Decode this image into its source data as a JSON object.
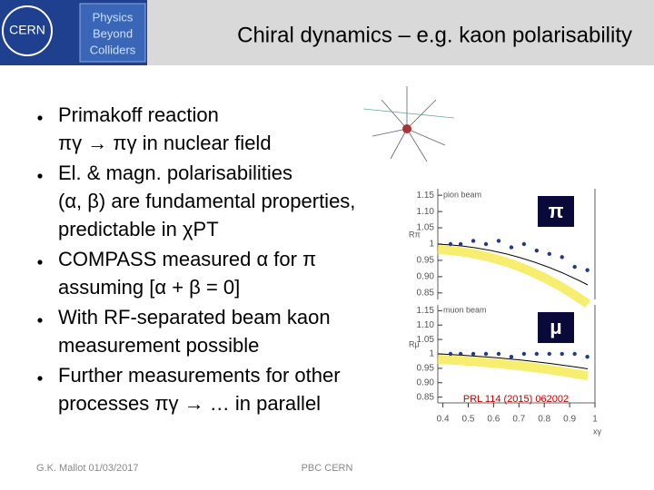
{
  "header": {
    "title": "Chiral dynamics – e.g. kaon polarisability",
    "logo_cern": "CERN",
    "logo_pbc": [
      "Physics",
      "Beyond",
      "Colliders"
    ]
  },
  "bullets": [
    [
      "Primakoff reaction",
      "πγ → πγ in nuclear field"
    ],
    [
      "El. & magn. polarisabilities",
      "(α, β) are fundamental properties,",
      "predictable in χPT"
    ],
    [
      "COMPASS measured α for π",
      "assuming [α + β = 0]"
    ],
    [
      "With RF-separated beam kaon",
      "measurement possible"
    ],
    [
      "Further measurements for other",
      "processes πγ → … in parallel"
    ]
  ],
  "figure": {
    "xlim": [
      0.38,
      1.0
    ],
    "xticks": [
      0.4,
      0.5,
      0.6,
      0.7,
      0.8,
      0.9,
      1
    ],
    "xlabel": "xγ",
    "panels": [
      {
        "beam": "pion beam",
        "ylabel": "Rπ",
        "symbol": "π",
        "ylim": [
          0.83,
          1.17
        ],
        "yticks": [
          {
            "value": 0.85,
            "label": "0.85"
          },
          {
            "value": 0.9,
            "label": "0.90"
          },
          {
            "value": 0.95,
            "label": "0.95"
          },
          1,
          {
            "value": 1.05,
            "label": "1.05"
          },
          {
            "value": 1.1,
            "label": "1.10"
          },
          {
            "value": 1.15,
            "label": "1.15"
          }
        ],
        "x": [
          0.43,
          0.47,
          0.52,
          0.57,
          0.62,
          0.67,
          0.72,
          0.77,
          0.82,
          0.87,
          0.92,
          0.97
        ],
        "values": [
          1.0,
          1.0,
          1.01,
          1.0,
          1.01,
          0.99,
          1.0,
          0.98,
          0.97,
          0.96,
          0.93,
          0.92
        ]
      },
      {
        "beam": "muon beam",
        "ylabel": "Rμ",
        "symbol": "μ",
        "ylim": [
          0.83,
          1.17
        ],
        "yticks": [
          {
            "value": 0.85,
            "label": "0.85"
          },
          {
            "value": 0.9,
            "label": "0.90"
          },
          {
            "value": 0.95,
            "label": "0.95"
          },
          1,
          {
            "value": 1.05,
            "label": "1.05"
          },
          {
            "value": 1.1,
            "label": "1.10"
          },
          {
            "value": 1.15,
            "label": "1.15"
          }
        ],
        "x": [
          0.43,
          0.47,
          0.52,
          0.57,
          0.62,
          0.67,
          0.72,
          0.77,
          0.82,
          0.87,
          0.92,
          0.97
        ],
        "values": [
          1.0,
          1.0,
          1.0,
          1.0,
          1.0,
          0.99,
          1.0,
          1.0,
          1.0,
          1.0,
          1.0,
          0.99
        ]
      }
    ],
    "reference": "PRL 114 (2015) 062002"
  },
  "footer": {
    "author": "G.K. Mallot 01/03/2017",
    "venue": "PBC CERN"
  }
}
